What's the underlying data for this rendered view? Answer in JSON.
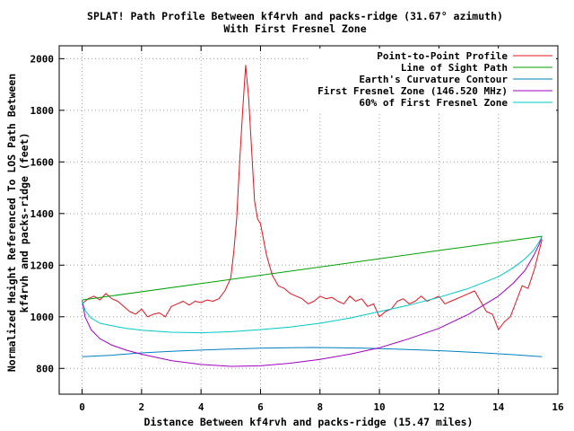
{
  "chart_data": {
    "type": "line",
    "title_line1": "SPLAT! Path Profile Between kf4rvh and packs-ridge (31.67° azimuth)",
    "title_line2": "With First Fresnel Zone",
    "xlabel": "Distance Between kf4rvh and packs-ridge (15.47 miles)",
    "ylabel_line1": "Normalized Height Referenced To LOS Path Between",
    "ylabel_line2": "kf4rvh and packs-ridge (feet)",
    "xlim": [
      -0.77,
      16
    ],
    "ylim": [
      700,
      2050
    ],
    "x_ticks": [
      0,
      2,
      4,
      6,
      8,
      10,
      12,
      14,
      16
    ],
    "y_ticks": [
      800,
      1000,
      1200,
      1400,
      1600,
      1800,
      2000
    ],
    "grid": true,
    "legend_position": "top-right",
    "path_length_miles": 15.47,
    "series": [
      {
        "name": "Point-to-Point Profile",
        "color": "#e0141e",
        "x": [
          0,
          0.2,
          0.4,
          0.6,
          0.8,
          1.0,
          1.2,
          1.4,
          1.6,
          1.8,
          2.0,
          2.2,
          2.4,
          2.6,
          2.8,
          3.0,
          3.2,
          3.4,
          3.6,
          3.8,
          4.0,
          4.2,
          4.4,
          4.6,
          4.8,
          5.0,
          5.1,
          5.2,
          5.3,
          5.4,
          5.5,
          5.6,
          5.7,
          5.8,
          5.9,
          6.0,
          6.1,
          6.2,
          6.4,
          6.6,
          6.8,
          7.0,
          7.2,
          7.4,
          7.6,
          7.8,
          8.0,
          8.2,
          8.4,
          8.6,
          8.8,
          9.0,
          9.2,
          9.4,
          9.6,
          9.8,
          10.0,
          10.2,
          10.4,
          10.6,
          10.8,
          11.0,
          11.2,
          11.4,
          11.6,
          11.8,
          12.0,
          12.2,
          12.4,
          12.6,
          12.8,
          13.0,
          13.2,
          13.4,
          13.6,
          13.8,
          14.0,
          14.2,
          14.4,
          14.6,
          14.8,
          15.0,
          15.2,
          15.47
        ],
        "values": [
          1050,
          1070,
          1080,
          1065,
          1090,
          1070,
          1060,
          1040,
          1020,
          1010,
          1030,
          1000,
          1010,
          1015,
          1000,
          1040,
          1050,
          1060,
          1045,
          1060,
          1055,
          1065,
          1060,
          1070,
          1100,
          1150,
          1250,
          1380,
          1600,
          1800,
          1975,
          1850,
          1650,
          1450,
          1380,
          1360,
          1300,
          1240,
          1160,
          1120,
          1110,
          1090,
          1080,
          1070,
          1050,
          1060,
          1080,
          1070,
          1075,
          1060,
          1050,
          1080,
          1060,
          1070,
          1040,
          1050,
          1000,
          1020,
          1030,
          1060,
          1070,
          1050,
          1060,
          1080,
          1060,
          1070,
          1080,
          1050,
          1060,
          1070,
          1080,
          1090,
          1100,
          1060,
          1020,
          1010,
          950,
          980,
          1000,
          1060,
          1120,
          1110,
          1180,
          1300
        ]
      },
      {
        "name": "Line of Sight Path",
        "color": "#00a000",
        "x": [
          0,
          15.47
        ],
        "values": [
          1065,
          1312
        ]
      },
      {
        "name": "Earth's Curvature Contour",
        "color": "#0080c0",
        "x": [
          0,
          1,
          2,
          3,
          4,
          5,
          6,
          7,
          7.735,
          8.5,
          9.5,
          10.5,
          11.5,
          12.5,
          13.5,
          14.5,
          15.47
        ],
        "values": [
          845,
          851,
          860,
          866,
          871,
          875,
          878,
          880,
          881,
          880,
          878,
          875,
          871,
          866,
          860,
          853,
          845
        ]
      },
      {
        "name": "First Fresnel Zone (146.520 MHz)",
        "color": "#a000c0",
        "x": [
          0,
          0.1,
          0.3,
          0.6,
          1.0,
          1.5,
          2.0,
          3.0,
          4.0,
          5.0,
          6.0,
          7.0,
          8.0,
          9.0,
          10.0,
          11.0,
          12.0,
          13.0,
          14.0,
          14.5,
          14.9,
          15.2,
          15.37,
          15.47
        ],
        "values": [
          1065,
          1000,
          950,
          915,
          890,
          870,
          855,
          830,
          815,
          808,
          810,
          820,
          835,
          855,
          880,
          915,
          955,
          1010,
          1080,
          1130,
          1180,
          1240,
          1280,
          1312
        ]
      },
      {
        "name": "60% of First Fresnel Zone",
        "color": "#00c8c8",
        "x": [
          0,
          0.1,
          0.3,
          0.6,
          1.0,
          1.5,
          2.0,
          3.0,
          4.0,
          5.0,
          6.0,
          7.0,
          8.0,
          9.0,
          10.0,
          11.0,
          12.0,
          13.0,
          14.0,
          14.5,
          14.9,
          15.2,
          15.37,
          15.47
        ],
        "values": [
          1065,
          1025,
          995,
          975,
          965,
          955,
          948,
          940,
          938,
          942,
          950,
          960,
          975,
          995,
          1020,
          1045,
          1075,
          1110,
          1155,
          1190,
          1225,
          1260,
          1290,
          1312
        ]
      }
    ]
  }
}
